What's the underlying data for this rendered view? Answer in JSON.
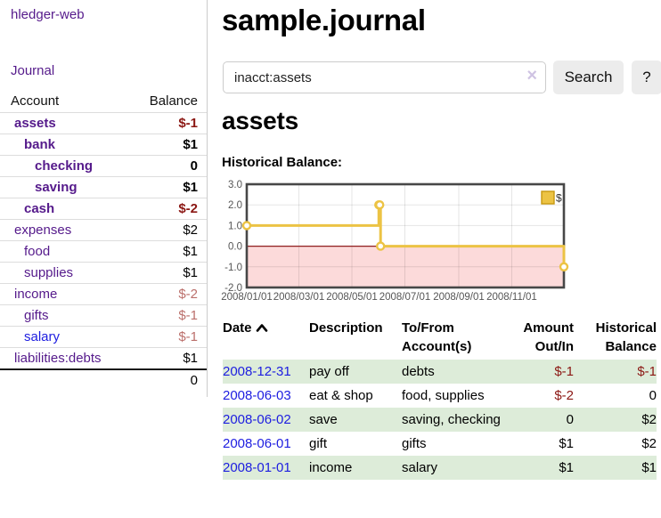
{
  "colors": {
    "link_visited": "#551a8b",
    "link_new": "#1d1de0",
    "neg_strong": "#8b1713",
    "neg_soft": "#bb6f6b",
    "row_green": "#ddecd9",
    "series_gold": "#ecc344",
    "legend_swatch_border": "#c79810",
    "zero_line": "#8f1f1f",
    "negative_region": "#fcdada",
    "plot_border": "#474747"
  },
  "brand": "hledger-web",
  "sidebar": {
    "nav_journal": "Journal",
    "accounts": {
      "col_account": "Account",
      "col_balance": "Balance",
      "rows": [
        {
          "account": "assets",
          "balance": "$-1",
          "depth": 1,
          "bold": true,
          "neg": "strong",
          "link": "visited"
        },
        {
          "account": "bank",
          "balance": "$1",
          "depth": 2,
          "bold": true,
          "neg": "none",
          "link": "visited"
        },
        {
          "account": "checking",
          "balance": "0",
          "depth": 3,
          "bold": true,
          "neg": "none",
          "link": "visited"
        },
        {
          "account": "saving",
          "balance": "$1",
          "depth": 3,
          "bold": true,
          "neg": "none",
          "link": "visited"
        },
        {
          "account": "cash",
          "balance": "$-2",
          "depth": 2,
          "bold": true,
          "neg": "strong",
          "link": "visited"
        },
        {
          "account": "expenses",
          "balance": "$2",
          "depth": 1,
          "bold": false,
          "neg": "none",
          "link": "visited"
        },
        {
          "account": "food",
          "balance": "$1",
          "depth": 2,
          "bold": false,
          "neg": "none",
          "link": "visited"
        },
        {
          "account": "supplies",
          "balance": "$1",
          "depth": 2,
          "bold": false,
          "neg": "none",
          "link": "visited"
        },
        {
          "account": "income",
          "balance": "$-2",
          "depth": 1,
          "bold": false,
          "neg": "soft",
          "link": "visited"
        },
        {
          "account": "gifts",
          "balance": "$-1",
          "depth": 2,
          "bold": false,
          "neg": "soft",
          "link": "visited"
        },
        {
          "account": "salary",
          "balance": "$-1",
          "depth": 2,
          "bold": false,
          "neg": "soft",
          "link": "new"
        },
        {
          "account": "liabilities:debts",
          "balance": "$1",
          "depth": 1,
          "bold": false,
          "neg": "none",
          "link": "visited"
        }
      ],
      "total": "0"
    }
  },
  "main": {
    "title": "sample.journal",
    "search": {
      "value": "inacct:assets",
      "clear_icon": "×",
      "search_label": "Search",
      "help_label": "?"
    },
    "account_heading": "assets",
    "section_label": "Historical Balance:"
  },
  "chart_data": {
    "type": "line",
    "step": true,
    "title": "Historical Balance:",
    "legend": "$",
    "legend_position": "top-right",
    "grid": true,
    "ylim": [
      -2,
      3
    ],
    "y_ticks": [
      3.0,
      2.0,
      1.0,
      0.0,
      -1.0,
      -2.0
    ],
    "y_tick_labels": [
      "3.0",
      "2.0",
      "1.0",
      "0.0",
      "-1.0",
      "-2.0"
    ],
    "x_tick_labels": [
      "2008/01/01",
      "2008/03/01",
      "2008/05/01",
      "2008/07/01",
      "2008/09/01",
      "2008/11/01"
    ],
    "x_tick_dates": [
      "2008-01-01",
      "2008-03-01",
      "2008-05-01",
      "2008-07-01",
      "2008-09-01",
      "2008-11-01"
    ],
    "x_range": [
      "2008-01-01",
      "2008-12-31"
    ],
    "negative_region_shaded": true,
    "series": [
      {
        "name": "$",
        "x": [
          "2008-01-01",
          "2008-06-01",
          "2008-06-02",
          "2008-06-03",
          "2008-12-31"
        ],
        "y": [
          1,
          2,
          2,
          0,
          -1
        ]
      }
    ]
  },
  "register": {
    "headers": [
      {
        "lines": [
          "Date"
        ],
        "sorted": "asc",
        "align": "left"
      },
      {
        "lines": [
          "Description"
        ],
        "align": "left"
      },
      {
        "lines": [
          "To/From",
          "Account(s)"
        ],
        "align": "left"
      },
      {
        "lines": [
          "Amount",
          "Out/In"
        ],
        "align": "right"
      },
      {
        "lines": [
          "Historical",
          "Balance"
        ],
        "align": "right"
      }
    ],
    "rows": [
      {
        "date": "2008-12-31",
        "description": "pay off",
        "accounts": "debts",
        "amount": "$-1",
        "amount_neg": true,
        "balance": "$-1",
        "balance_neg": true,
        "shaded": true
      },
      {
        "date": "2008-06-03",
        "description": "eat & shop",
        "accounts": "food, supplies",
        "amount": "$-2",
        "amount_neg": true,
        "balance": "0",
        "balance_neg": false,
        "shaded": false
      },
      {
        "date": "2008-06-02",
        "description": "save",
        "accounts": "saving, checking",
        "amount": "0",
        "amount_neg": false,
        "balance": "$2",
        "balance_neg": false,
        "shaded": true
      },
      {
        "date": "2008-06-01",
        "description": "gift",
        "accounts": "gifts",
        "amount": "$1",
        "amount_neg": false,
        "balance": "$2",
        "balance_neg": false,
        "shaded": false
      },
      {
        "date": "2008-01-01",
        "description": "income",
        "accounts": "salary",
        "amount": "$1",
        "amount_neg": false,
        "balance": "$1",
        "balance_neg": false,
        "shaded": true
      }
    ]
  }
}
